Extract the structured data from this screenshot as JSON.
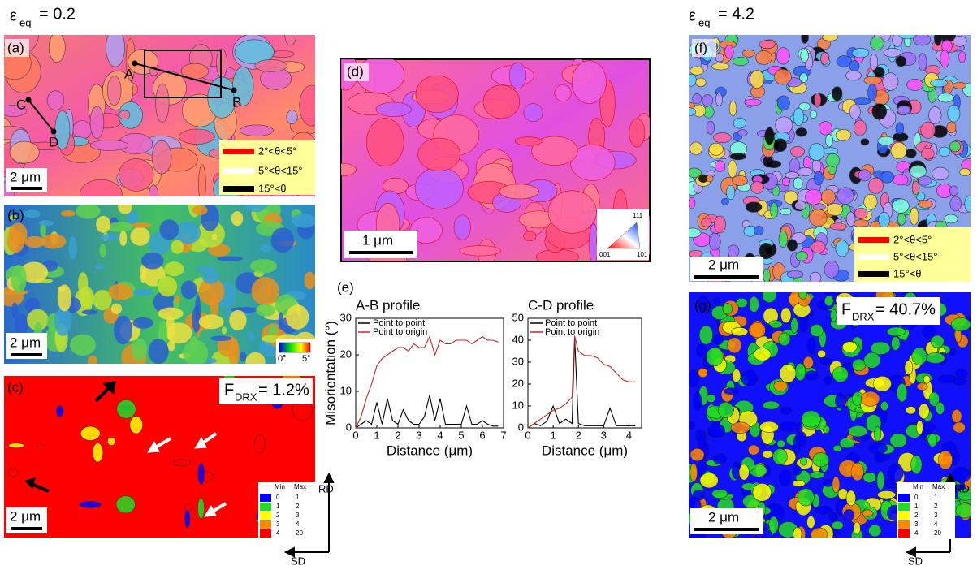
{
  "headers": {
    "left": {
      "symbol": "ε",
      "sub": "eq",
      "text": "= 0.2"
    },
    "right": {
      "symbol": "ε",
      "sub": "eq",
      "text": "= 4.2"
    }
  },
  "panels": {
    "a": "(a)",
    "b": "(b)",
    "c": "(c)",
    "d": "(d)",
    "e": "(e)",
    "f": "(f)",
    "g": "(g)"
  },
  "boundary_legend": [
    "2°<θ<5°",
    "5°<θ<15°",
    "15°<θ"
  ],
  "scale_bars": {
    "a": "2 μm",
    "b": "2 μm",
    "c": "2 μm",
    "d": "1 μm",
    "f": "2 μm",
    "g": "2 μm"
  },
  "points": [
    "A",
    "B",
    "C",
    "D"
  ],
  "kam_colorbar": [
    "0°",
    "5°"
  ],
  "ipf": [
    "111",
    "001",
    "101"
  ],
  "fdrx": {
    "c": {
      "symbol": "F",
      "sub": "DRX",
      "text": "= 1.2%"
    },
    "g": {
      "symbol": "F",
      "sub": "DRX",
      "text": "= 40.7%"
    }
  },
  "gos_table": {
    "header": [
      "Min",
      "Max"
    ],
    "rows": [
      [
        "0",
        "1"
      ],
      [
        "1",
        "2"
      ],
      [
        "2",
        "3"
      ],
      [
        "3",
        "4"
      ],
      [
        "4",
        "20"
      ]
    ],
    "colors": [
      "#0000ff",
      "#22dd22",
      "#ffff00",
      "#ff8800",
      "#ff0000"
    ]
  },
  "directions": [
    "RD",
    "SD"
  ],
  "chart_data": [
    {
      "type": "line",
      "title": "A-B profile",
      "y_label": "Misorientation (°)",
      "x_label": "Distance (μm)",
      "x": [
        0,
        0.25,
        0.5,
        0.75,
        1,
        1.25,
        1.5,
        1.75,
        2,
        2.25,
        2.5,
        2.75,
        3,
        3.25,
        3.5,
        3.75,
        4,
        4.25,
        4.5,
        4.75,
        5,
        5.25,
        5.5,
        5.75,
        6,
        6.25,
        6.5,
        6.75
      ],
      "xlim": [
        0,
        7
      ],
      "xticks": [
        0,
        1,
        2,
        3,
        4,
        5,
        6,
        7
      ],
      "ylim": [
        0,
        30
      ],
      "yticks": [
        0,
        10,
        20,
        30
      ],
      "series": [
        {
          "name": "Point to point",
          "color": "#000000",
          "values": [
            0,
            1,
            2,
            1,
            7,
            1,
            8,
            2,
            1,
            5,
            2,
            1,
            1,
            3,
            9,
            2,
            8,
            1,
            1,
            1,
            1,
            6,
            1,
            1,
            2,
            1,
            0.5,
            0.5
          ]
        },
        {
          "name": "Point to origin",
          "color": "#c0282a",
          "values": [
            0,
            3,
            8,
            12,
            17,
            19,
            20,
            21,
            22,
            22,
            21,
            23,
            22,
            22,
            25,
            20,
            24,
            23,
            23,
            24,
            24,
            24,
            23,
            24,
            25,
            24,
            24,
            23.5
          ]
        }
      ]
    },
    {
      "type": "line",
      "title": "C-D profile",
      "x_label": "Distance (μm)",
      "x": [
        0,
        0.25,
        0.5,
        0.75,
        1,
        1.25,
        1.5,
        1.75,
        1.85,
        2,
        2.25,
        2.5,
        2.75,
        3,
        3.25,
        3.5,
        3.75,
        4,
        4.25
      ],
      "xlim": [
        0,
        4.5
      ],
      "xticks": [
        0,
        1,
        2,
        3,
        4
      ],
      "ylim": [
        0,
        50
      ],
      "yticks": [
        0,
        10,
        20,
        30,
        40,
        50
      ],
      "series": [
        {
          "name": "Point to point",
          "color": "#000000",
          "values": [
            0,
            2,
            1,
            3,
            10,
            2,
            4,
            2,
            41,
            2,
            1,
            1,
            1,
            1,
            9,
            1,
            1,
            1,
            1
          ]
        },
        {
          "name": "Point to origin",
          "color": "#c0282a",
          "values": [
            0,
            2,
            4,
            6,
            8,
            9,
            11,
            14,
            42,
            35,
            33,
            33,
            32,
            29,
            28,
            25,
            22,
            21,
            21
          ]
        }
      ]
    }
  ]
}
